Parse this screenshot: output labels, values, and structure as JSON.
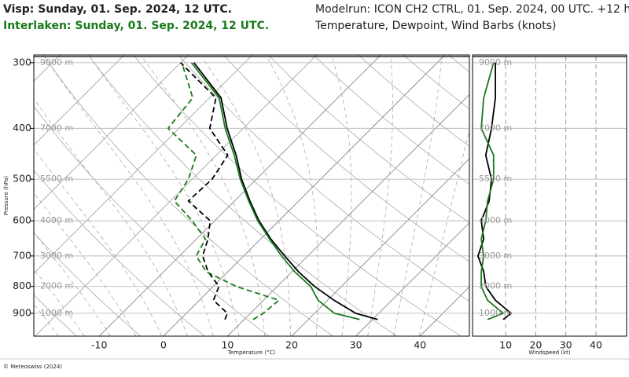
{
  "header": {
    "station_1": "Visp: Sunday, 01. Sep. 2024, 12 UTC.",
    "station_2": "Interlaken: Sunday, 01. Sep. 2024, 12 UTC.",
    "model_run": "Modelrun: ICON CH2 CTRL, 01. Sep. 2024, 00 UTC. +12 h",
    "subtitle": "Temperature, Dewpoint, Wind Barbs (knots)"
  },
  "footer": "© Meteoswiss (2024)",
  "chart_data": [
    {
      "type": "skewt",
      "xlabel": "Temperature (°C)",
      "ylabel": "Pressure (hPa)",
      "xlim": [
        -20.2,
        47.7
      ],
      "xticks": [
        -10,
        0,
        10,
        20,
        30,
        40
      ],
      "ylim": [
        995,
        290
      ],
      "yticks": [
        300,
        400,
        500,
        600,
        700,
        800,
        900
      ],
      "log_y": true,
      "height_labels": [
        {
          "value": 300,
          "label": "9000 m"
        },
        {
          "value": 400,
          "label": "7000 m"
        },
        {
          "value": 500,
          "label": "5500 m"
        },
        {
          "value": 600,
          "label": "4000 m"
        },
        {
          "value": 700,
          "label": "3000 m"
        },
        {
          "value": 800,
          "label": "2000 m"
        },
        {
          "value": 900,
          "label": "1000 m"
        }
      ],
      "levels": [
        925,
        900,
        850,
        800,
        750,
        700,
        650,
        600,
        550,
        500,
        450,
        400,
        350,
        300
      ],
      "series": [
        {
          "color": "#000000",
          "dash": false,
          "values": [
            30.8,
            26.4,
            21.0,
            15.8,
            11.0,
            6.4,
            1.6,
            -3.1,
            -7.6,
            -12.3,
            -16.9,
            -22.5,
            -28.2,
            -37.9
          ]
        },
        {
          "color": "#1a7a1a",
          "dash": false,
          "values": [
            28.0,
            23.1,
            18.5,
            15.2,
            10.4,
            5.9,
            1.4,
            -3.3,
            -7.8,
            -12.5,
            -17.2,
            -22.8,
            -28.5,
            -38.3
          ]
        },
        {
          "color": "#000000",
          "dash": true,
          "values": [
            7.0,
            6.4,
            2.2,
            0.9,
            -3.1,
            -6.4,
            -8.2,
            -10.7,
            -17.2,
            -16.9,
            -18.2,
            -25.2,
            -29.0,
            -40.0
          ]
        },
        {
          "color": "#1a7a1a",
          "dash": true,
          "values": [
            11.4,
            12.0,
            12.4,
            3.6,
            -3.4,
            -7.4,
            -8.6,
            -13.5,
            -19.4,
            -20.6,
            -23.1,
            -31.7,
            -32.6,
            -39.8
          ]
        }
      ]
    },
    {
      "type": "profile",
      "xlabel": "Windspeed (kt)",
      "xlim": [
        -1,
        50.2
      ],
      "xticks": [
        10,
        20,
        30,
        40
      ],
      "ylim": [
        995,
        290
      ],
      "yticks": [
        300,
        400,
        500,
        600,
        700,
        800,
        900
      ],
      "log_y": true,
      "height_labels": [
        {
          "value": 300,
          "label": "9000 m"
        },
        {
          "value": 400,
          "label": "7000 m"
        },
        {
          "value": 500,
          "label": "5500 m"
        },
        {
          "value": 600,
          "label": "4000 m"
        },
        {
          "value": 700,
          "label": "3000 m"
        },
        {
          "value": 800,
          "label": "2000 m"
        },
        {
          "value": 900,
          "label": "1000 m"
        }
      ],
      "levels": [
        925,
        900,
        850,
        800,
        750,
        700,
        650,
        600,
        550,
        500,
        450,
        400,
        350,
        300
      ],
      "series": [
        {
          "color": "#000000",
          "dash": false,
          "values": [
            9.2,
            11.8,
            6.6,
            3.4,
            2.7,
            0.8,
            2.7,
            1.9,
            4.5,
            5.3,
            3.4,
            5.3,
            6.6,
            6.6
          ]
        },
        {
          "color": "#1a7a1a",
          "dash": false,
          "values": [
            4.0,
            9.2,
            4.0,
            1.9,
            1.9,
            2.7,
            1.9,
            3.4,
            4.0,
            6.0,
            6.0,
            1.9,
            2.7,
            6.0
          ]
        }
      ]
    }
  ]
}
